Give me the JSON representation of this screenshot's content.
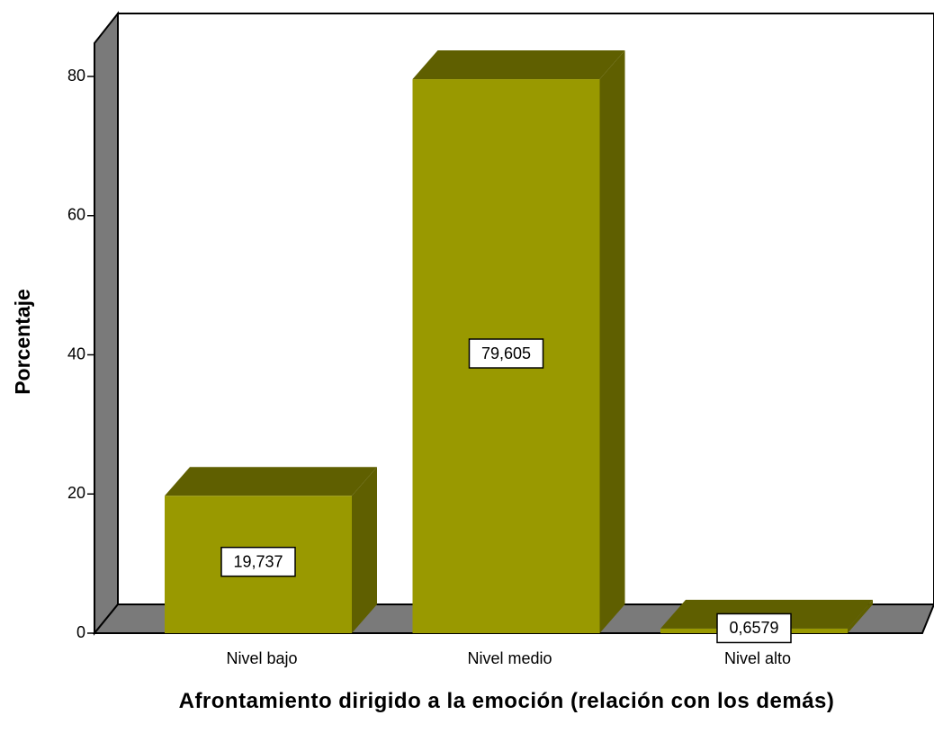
{
  "chart_data": {
    "type": "bar3d",
    "categories": [
      "Nivel bajo",
      "Nivel medio",
      "Nivel alto"
    ],
    "values": [
      19.737,
      79.605,
      0.6579
    ],
    "value_labels": [
      "19,737",
      "79,605",
      "0,6579"
    ],
    "color": "#999900",
    "shade": "#5f5f00",
    "ylim": [
      0,
      80
    ],
    "yticks": [
      0,
      20,
      40,
      60,
      80
    ],
    "xlabel": "Afrontamiento dirigido a la emoción (relación con los demás)",
    "ylabel": "Porcentaje"
  }
}
